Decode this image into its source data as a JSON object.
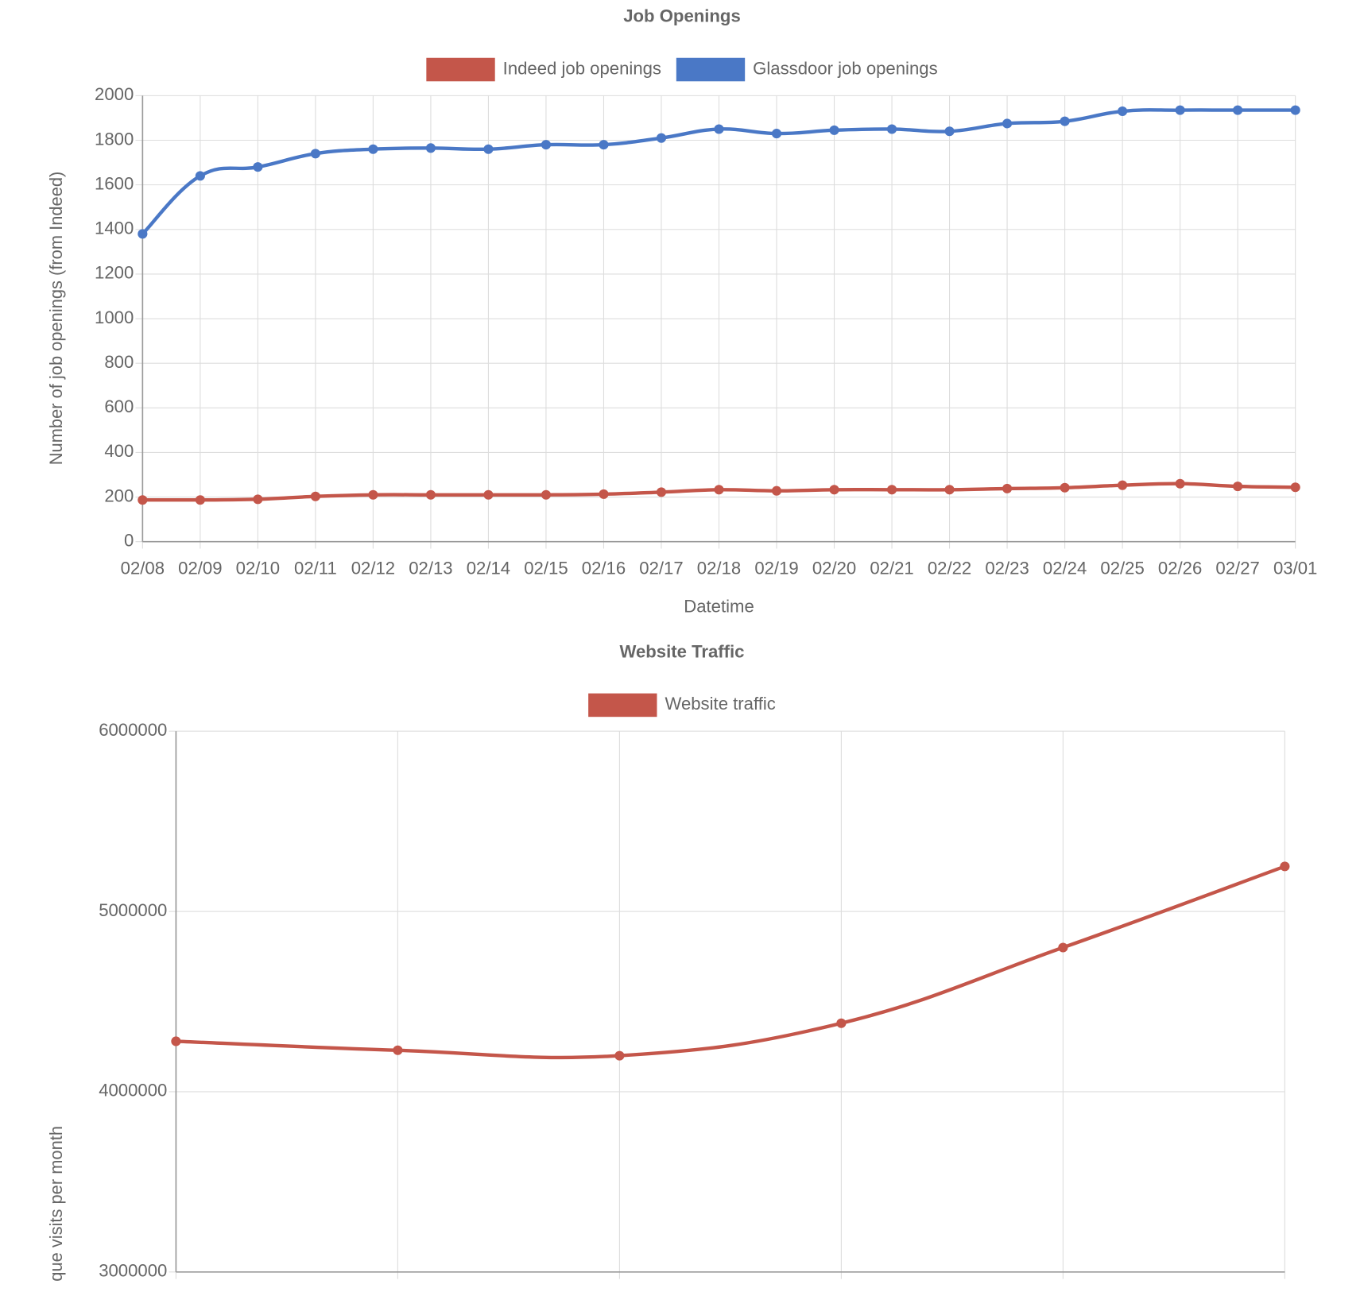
{
  "chart_data": [
    {
      "type": "line",
      "title": "Job Openings",
      "x_label": "Datetime",
      "y_label": "Number of job openings (from Indeed)",
      "categories": [
        "02/08",
        "02/09",
        "02/10",
        "02/11",
        "02/12",
        "02/13",
        "02/14",
        "02/15",
        "02/16",
        "02/17",
        "02/18",
        "02/19",
        "02/20",
        "02/21",
        "02/22",
        "02/23",
        "02/24",
        "02/25",
        "02/26",
        "02/27",
        "03/01"
      ],
      "series": [
        {
          "name": "Indeed job openings",
          "color": "#c4564a",
          "values": [
            187,
            187,
            190,
            203,
            210,
            210,
            210,
            210,
            213,
            222,
            233,
            228,
            233,
            233,
            233,
            238,
            242,
            253,
            260,
            248,
            244
          ]
        },
        {
          "name": "Glassdoor job openings",
          "color": "#4a78c6",
          "values": [
            1380,
            1640,
            1680,
            1740,
            1760,
            1765,
            1760,
            1780,
            1780,
            1810,
            1850,
            1830,
            1845,
            1850,
            1840,
            1875,
            1885,
            1930,
            1935,
            1935,
            1935
          ]
        }
      ],
      "ylim": [
        0,
        2000
      ],
      "yticks": [
        0,
        200,
        400,
        600,
        800,
        1000,
        1200,
        1400,
        1600,
        1800,
        2000
      ],
      "grid": true
    },
    {
      "type": "line",
      "title": "Website Traffic",
      "y_label": "que visits per month",
      "categories": [
        null,
        null,
        null,
        null,
        null,
        null
      ],
      "series": [
        {
          "name": "Website traffic",
          "color": "#c4564a",
          "values": [
            4280000,
            4230000,
            4200000,
            4380000,
            4800000,
            5250000
          ]
        }
      ],
      "ylim": [
        3000000,
        6000000
      ],
      "yticks": [
        3000000,
        4000000,
        5000000,
        6000000
      ],
      "grid": true
    }
  ]
}
